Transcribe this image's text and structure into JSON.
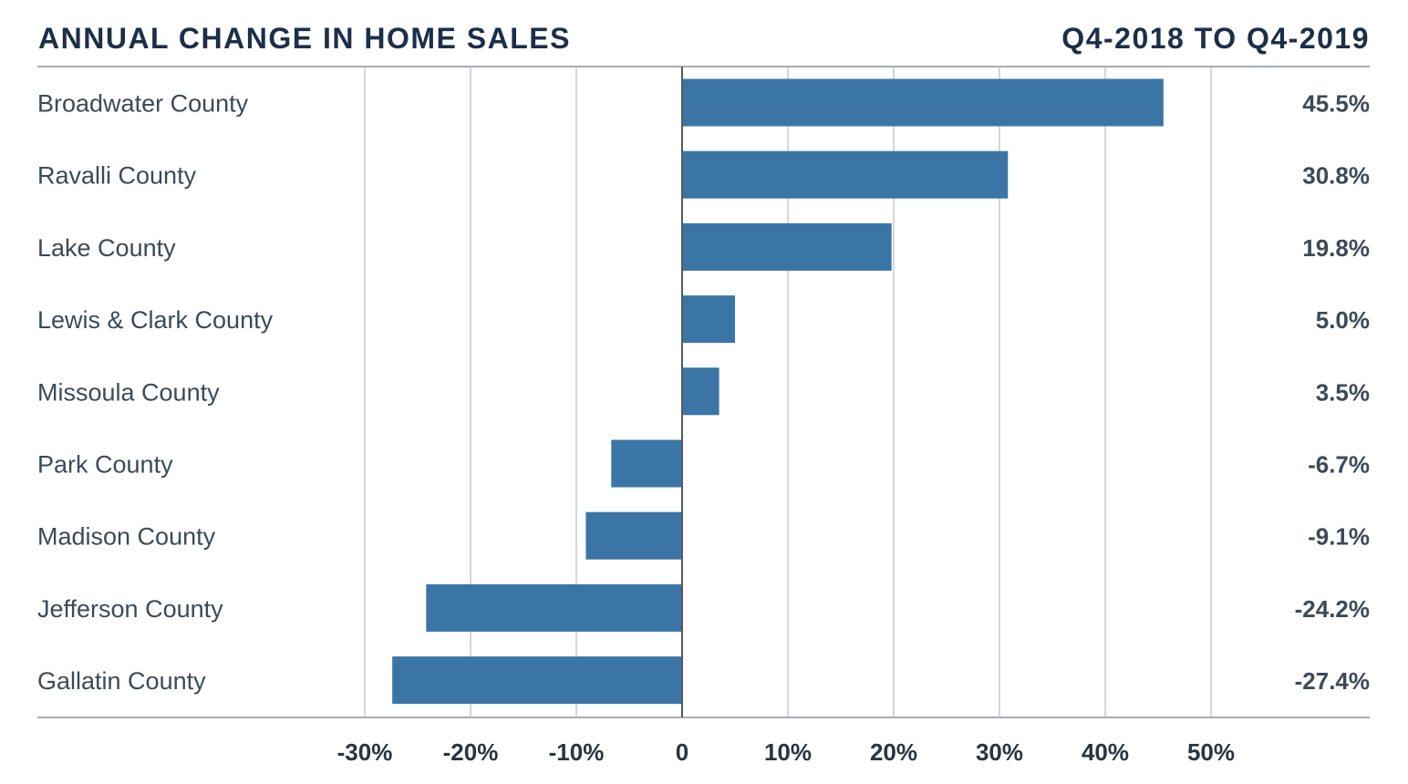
{
  "header": {
    "title": "ANNUAL CHANGE IN HOME SALES",
    "period": "Q4-2018 TO Q4-2019"
  },
  "chart_data": {
    "type": "bar",
    "orientation": "horizontal",
    "title": "ANNUAL CHANGE IN HOME SALES",
    "subtitle": "Q4-2018 TO Q4-2019",
    "categories": [
      "Broadwater County",
      "Ravalli County",
      "Lake County",
      "Lewis & Clark County",
      "Missoula County",
      "Park County",
      "Madison County",
      "Jefferson County",
      "Gallatin County"
    ],
    "values": [
      45.5,
      30.8,
      19.8,
      5.0,
      3.5,
      -6.7,
      -9.1,
      -24.2,
      -27.4
    ],
    "value_labels": [
      "45.5%",
      "30.8%",
      "19.8%",
      "5.0%",
      "3.5%",
      "-6.7%",
      "-9.1%",
      "-24.2%",
      "-27.4%"
    ],
    "x_ticks": [
      -30,
      -20,
      -10,
      0,
      10,
      20,
      30,
      40,
      50
    ],
    "x_tick_labels": [
      "-30%",
      "-20%",
      "-10%",
      "0",
      "10%",
      "20%",
      "30%",
      "40%",
      "50%"
    ],
    "xlim": [
      -30,
      50
    ],
    "grid": true,
    "bar_color": "#3a75a6",
    "xlabel": "",
    "ylabel": ""
  }
}
